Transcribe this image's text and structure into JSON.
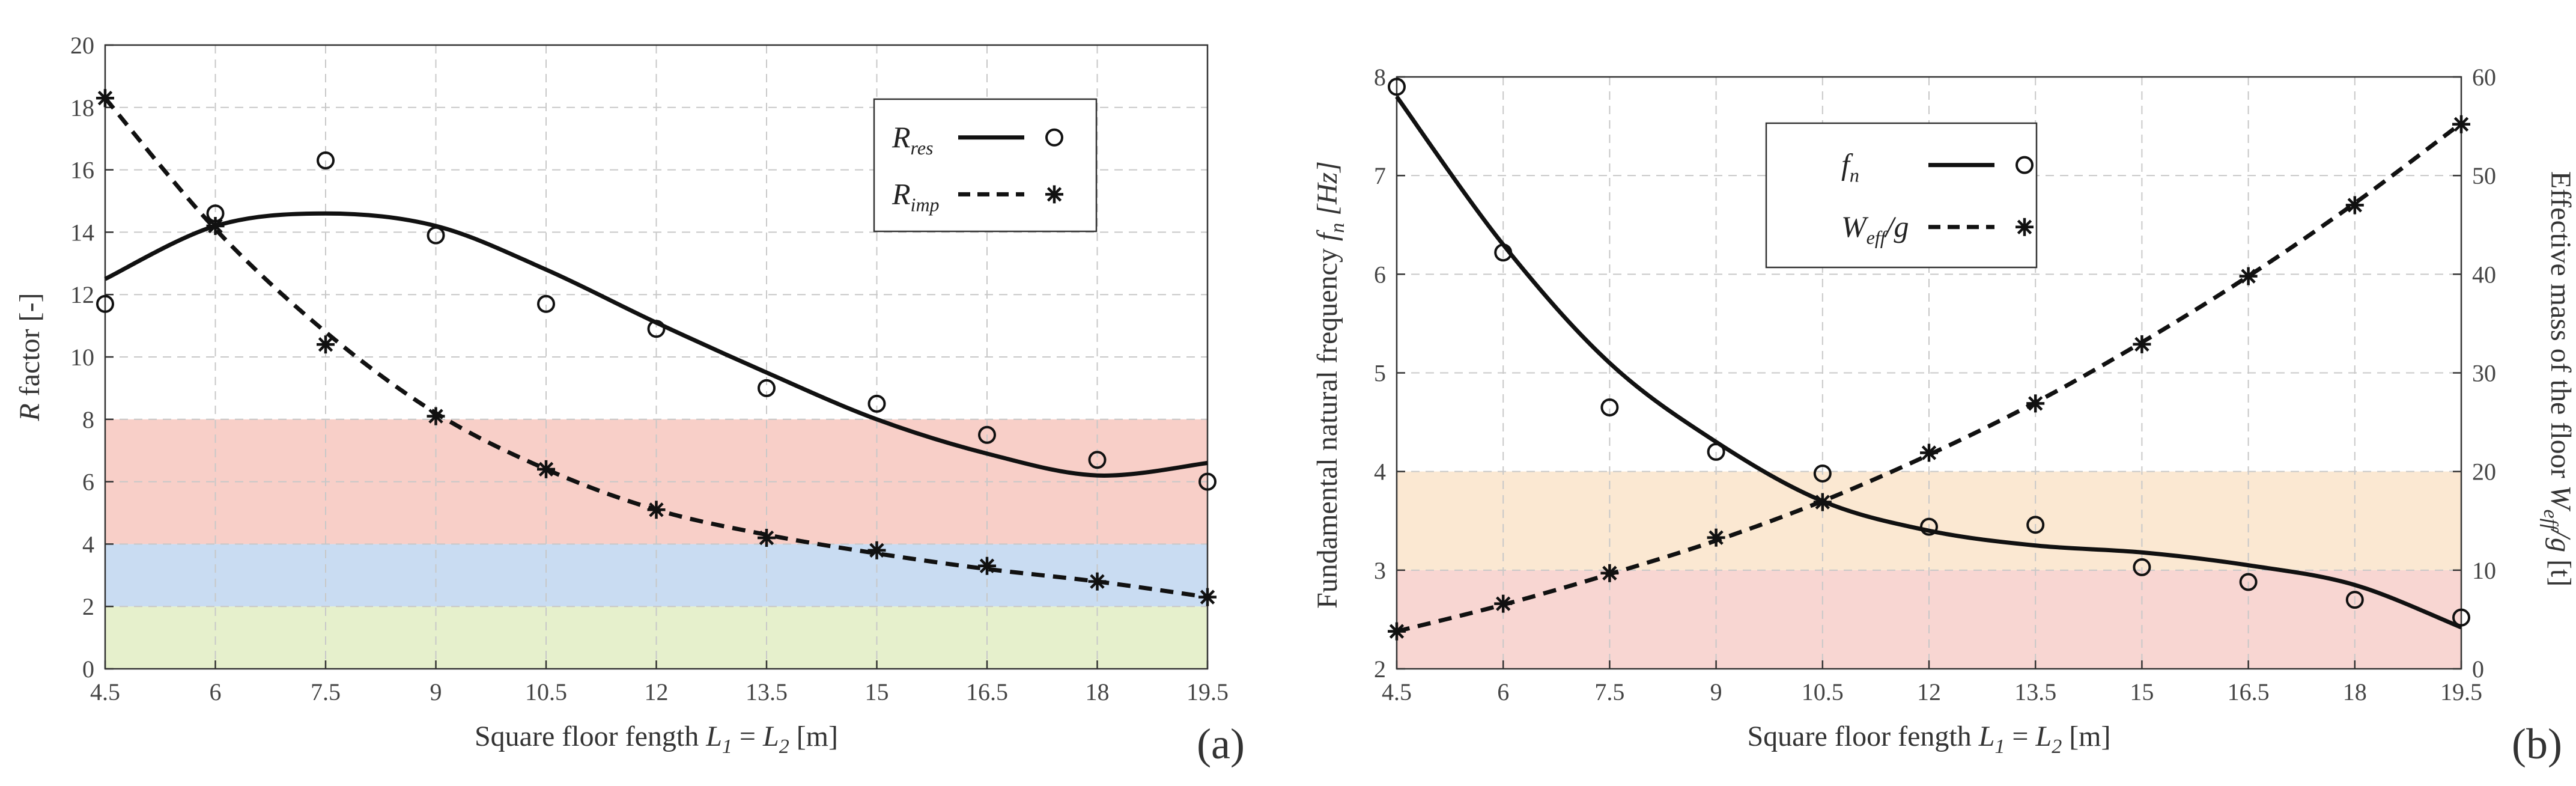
{
  "chart_data": [
    {
      "type": "scatter",
      "panel_label": "(a)",
      "xlabel": {
        "prefix": "Square floor fength",
        "symbol": "L",
        "sub1": "1",
        "eq": "=",
        "sub2": "2",
        "unit": "[m]"
      },
      "ylabel": {
        "symbol": "R",
        "rest": " factor [-]"
      },
      "x_ticks": [
        "4.5",
        "6",
        "7.5",
        "9",
        "10.5",
        "12",
        "13.5",
        "15",
        "16.5",
        "18",
        "19.5"
      ],
      "y_ticks": [
        "0",
        "2",
        "4",
        "6",
        "8",
        "10",
        "12",
        "14",
        "16",
        "18",
        "20"
      ],
      "xlim": [
        4.5,
        19.5
      ],
      "ylim": [
        0,
        20
      ],
      "grid": true,
      "bands": [
        {
          "from": 0,
          "to": 2,
          "color": "#e6f0cc"
        },
        {
          "from": 2,
          "to": 4,
          "color": "#c9dcf2"
        },
        {
          "from": 4,
          "to": 8,
          "color": "#f8cfc8"
        }
      ],
      "series": [
        {
          "name": "R_res",
          "legend": {
            "main": "R",
            "sub": "res"
          },
          "marker": "circle",
          "line": "solid",
          "x": [
            4.5,
            6,
            7.5,
            9,
            10.5,
            12,
            13.5,
            15,
            16.5,
            18,
            19.5
          ],
          "points": [
            11.7,
            14.6,
            16.3,
            13.9,
            11.7,
            10.9,
            9.0,
            8.5,
            7.5,
            6.7,
            6.0
          ],
          "fit": [
            12.5,
            14.2,
            14.6,
            14.2,
            12.8,
            11.1,
            9.5,
            8.0,
            6.9,
            6.2,
            6.6
          ]
        },
        {
          "name": "R_imp",
          "legend": {
            "main": "R",
            "sub": "imp"
          },
          "marker": "star",
          "line": "dashed",
          "x": [
            4.5,
            6,
            7.5,
            9,
            10.5,
            12,
            13.5,
            15,
            16.5,
            18,
            19.5
          ],
          "points": [
            18.3,
            14.2,
            10.4,
            8.1,
            6.4,
            5.1,
            4.2,
            3.8,
            3.3,
            2.8,
            2.3
          ],
          "fit": [
            18.3,
            14.1,
            10.8,
            8.2,
            6.4,
            5.1,
            4.3,
            3.7,
            3.2,
            2.8,
            2.3
          ]
        }
      ]
    },
    {
      "type": "scatter",
      "panel_label": "(b)",
      "xlabel": {
        "prefix": "Square floor fength",
        "symbol": "L",
        "sub1": "1",
        "eq": "=",
        "sub2": "2",
        "unit": "[m]"
      },
      "ylabel_left": {
        "text": "Fundamental natural frequency",
        "symbol": "f",
        "sub": "n",
        "unit": "[Hz]"
      },
      "ylabel_right": {
        "text": "Effective mass of the floor",
        "symbol": "W",
        "sub": "eff",
        "tail": "/g",
        "unit": "[t]"
      },
      "x_ticks": [
        "4.5",
        "6",
        "7.5",
        "9",
        "10.5",
        "12",
        "13.5",
        "15",
        "16.5",
        "18",
        "19.5"
      ],
      "y_ticks_left": [
        "2",
        "3",
        "4",
        "5",
        "6",
        "7",
        "8"
      ],
      "y_ticks_right": [
        "0",
        "10",
        "20",
        "30",
        "40",
        "50",
        "60"
      ],
      "xlim": [
        4.5,
        19.5
      ],
      "ylim_left": [
        2,
        8
      ],
      "ylim_right": [
        0,
        60
      ],
      "grid": true,
      "bands": [
        {
          "from": 2,
          "to": 3,
          "color": "#f8d6d2"
        },
        {
          "from": 3,
          "to": 4,
          "color": "#fbe8d2"
        }
      ],
      "series": [
        {
          "name": "f_n",
          "legend": {
            "main": "f",
            "sub": "n",
            "tail": ""
          },
          "axis": "left",
          "marker": "circle",
          "line": "solid",
          "x": [
            4.5,
            6,
            7.5,
            9,
            10.5,
            12,
            13.5,
            15,
            16.5,
            18,
            19.5
          ],
          "points": [
            7.9,
            6.22,
            4.65,
            4.2,
            3.98,
            3.44,
            3.46,
            3.03,
            2.88,
            2.7,
            2.52
          ],
          "fit": [
            7.8,
            6.3,
            5.1,
            4.3,
            3.7,
            3.4,
            3.25,
            3.18,
            3.05,
            2.85,
            2.42
          ]
        },
        {
          "name": "W_eff/g",
          "legend": {
            "main": "W",
            "sub": "eff",
            "tail": "/g"
          },
          "axis": "right",
          "marker": "star",
          "line": "dashed",
          "x": [
            4.5,
            6,
            7.5,
            9,
            10.5,
            12,
            13.5,
            15,
            16.5,
            18,
            19.5
          ],
          "points": [
            3.8,
            6.6,
            9.7,
            13.3,
            16.9,
            21.9,
            26.9,
            32.9,
            39.8,
            47.0,
            55.2
          ],
          "fit": [
            3.8,
            6.5,
            9.6,
            13.0,
            17.0,
            21.7,
            27.0,
            33.1,
            39.8,
            47.2,
            55.3
          ]
        }
      ]
    }
  ]
}
